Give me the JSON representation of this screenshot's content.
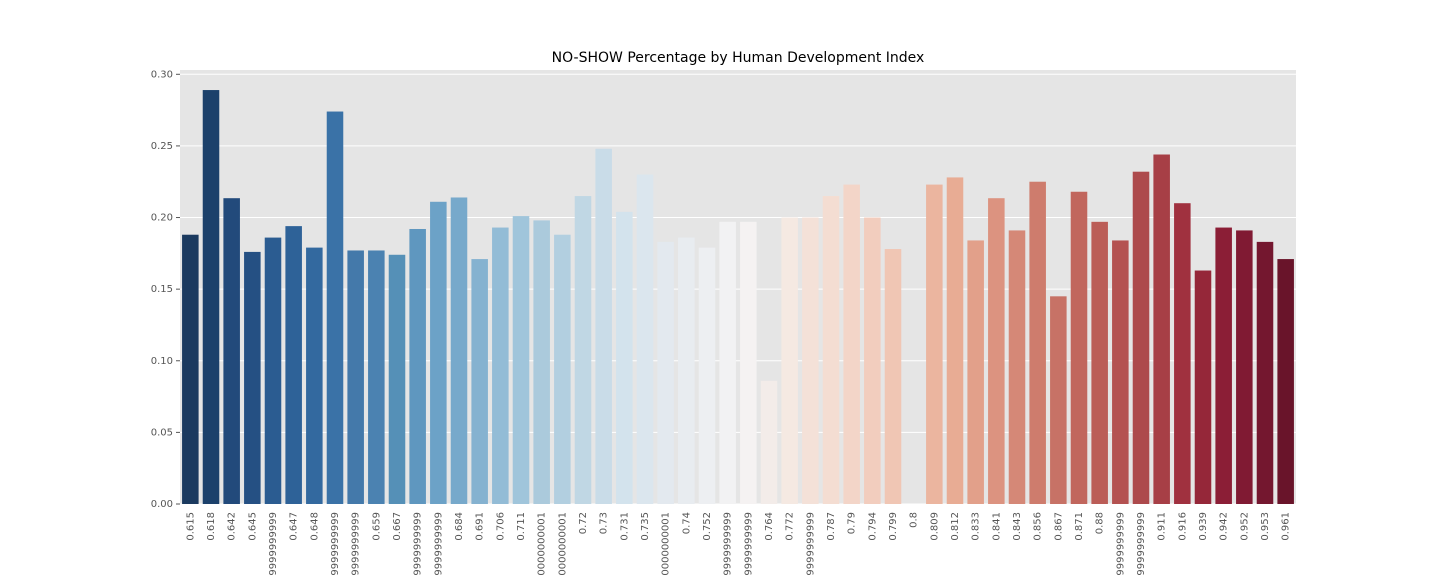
{
  "chart_data": {
    "type": "bar",
    "title": "NO-SHOW Percentage by Human Development Index",
    "categories": [
      "0.615",
      "0.618",
      "0.642",
      "0.645",
      "9999999999",
      "0.647",
      "0.648",
      "9999999999",
      "9999999999",
      "0.659",
      "0.667",
      "9999999999",
      "9999999999",
      "0.684",
      "0.691",
      "0.706",
      "0.711",
      "0000000001",
      "0000000001",
      "0.72",
      "0.73",
      "0.731",
      "0.735",
      "0000000001",
      "0.74",
      "0.752",
      "9999999999",
      "9999999999",
      "0.764",
      "0.772",
      "9999999999",
      "0.787",
      "0.79",
      "0.794",
      "0.799",
      "0.8",
      "0.809",
      "0.812",
      "0.833",
      "0.841",
      "0.843",
      "0.856",
      "0.867",
      "0.871",
      "0.88",
      "9999999999",
      "9999999999",
      "0.911",
      "0.916",
      "0.939",
      "0.942",
      "0.952",
      "0.953",
      "0.961"
    ],
    "values": [
      0.188,
      0.289,
      0.2135,
      0.176,
      0.186,
      0.194,
      0.179,
      0.274,
      0.177,
      0.177,
      0.174,
      0.192,
      0.211,
      0.214,
      0.171,
      0.193,
      0.201,
      0.198,
      0.188,
      0.215,
      0.248,
      0.204,
      0.23,
      0.183,
      0.186,
      0.179,
      0.197,
      0.197,
      0.086,
      0.2,
      0.2,
      0.215,
      0.223,
      0.2,
      0.178,
      0,
      0.223,
      0.228,
      0.184,
      0.2135,
      0.191,
      0.225,
      0.145,
      0.218,
      0.197,
      0.184,
      0.232,
      0.244,
      0.21,
      0.163,
      0.193,
      0.191,
      0.183,
      0.171
    ],
    "colors": [
      "#1b3a5f",
      "#1c416b",
      "#224a7b",
      "#255083",
      "#2b5c91",
      "#2e6298",
      "#33699f",
      "#3a72a7",
      "#4479aa",
      "#4b82b1",
      "#5590b7",
      "#5f97bf",
      "#6ca2c7",
      "#77a9cb",
      "#85b2d0",
      "#93bcd6",
      "#a0c5db",
      "#abcadc",
      "#b2cfe0",
      "#c0d7e4",
      "#c9dce8",
      "#d3e3ed",
      "#dbe6ee",
      "#e3e9ef",
      "#e8ecf0",
      "#edeff2",
      "#f2f2f3",
      "#f5f2f2",
      "#f3ece9",
      "#f5e9e2",
      "#f4e1d8",
      "#f4ddd2",
      "#f3d5c8",
      "#f2cdbe",
      "#f0c6b4",
      "#eebfac",
      "#ebb59f",
      "#e8ac94",
      "#e2a08a",
      "#dc9380",
      "#d58877",
      "#ce7c6d",
      "#c77266",
      "#c1665d",
      "#bb5d57",
      "#b45251",
      "#ad4a4c",
      "#a73f46",
      "#a0313f",
      "#952739",
      "#8b1e36",
      "#801a33",
      "#74172f",
      "#69142a"
    ],
    "ylim": [
      0,
      0.303
    ],
    "yticks": [
      {
        "value": 0,
        "label": "0.00"
      },
      {
        "value": 0.05,
        "label": "0.05"
      },
      {
        "value": 0.1,
        "label": "0.10"
      },
      {
        "value": 0.15,
        "label": "0.15"
      },
      {
        "value": 0.2,
        "label": "0.20"
      },
      {
        "value": 0.25,
        "label": "0.25"
      },
      {
        "value": 0.3,
        "label": "0.30"
      }
    ],
    "grid": true
  }
}
